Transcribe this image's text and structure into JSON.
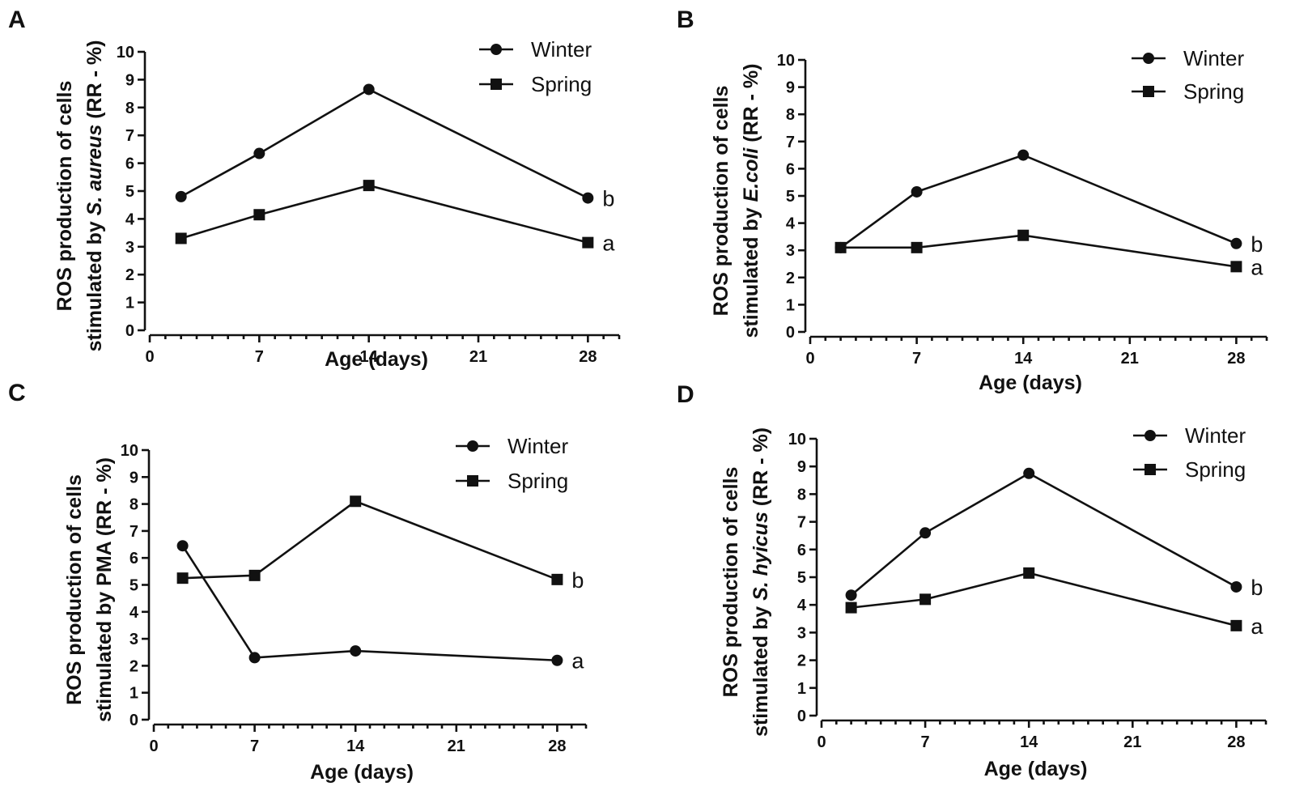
{
  "chart_data": [
    {
      "type": "line",
      "panel": "A",
      "title": "",
      "xlabel": "Age (days)",
      "ylabel_parts": [
        "ROS production of cells",
        "stimulated by ",
        "S. aureus",
        " (RR - %)"
      ],
      "xlim": [
        0,
        30
      ],
      "ylim": [
        0,
        10
      ],
      "xticks": [
        0,
        7,
        14,
        21,
        28
      ],
      "yticks": [
        0,
        1,
        2,
        3,
        4,
        5,
        6,
        7,
        8,
        9,
        10
      ],
      "x": [
        2,
        7,
        14,
        28
      ],
      "series": [
        {
          "name": "Winter",
          "marker": "circle",
          "values": [
            4.8,
            6.35,
            8.65,
            4.75
          ],
          "group_letter": "b"
        },
        {
          "name": "Spring",
          "marker": "square",
          "values": [
            3.3,
            4.15,
            5.2,
            3.15
          ],
          "group_letter": "a"
        }
      ],
      "legend": "top-right",
      "grid": false
    },
    {
      "type": "line",
      "panel": "B",
      "title": "",
      "xlabel": "Age (days)",
      "ylabel_parts": [
        "ROS production of cells",
        "stimulated by ",
        "E.coli",
        " (RR - %)"
      ],
      "xlim": [
        0,
        30
      ],
      "ylim": [
        0,
        10
      ],
      "xticks": [
        0,
        7,
        14,
        21,
        28
      ],
      "yticks": [
        0,
        1,
        2,
        3,
        4,
        5,
        6,
        7,
        8,
        9,
        10
      ],
      "x": [
        2,
        7,
        14,
        28
      ],
      "series": [
        {
          "name": "Winter",
          "marker": "circle",
          "values": [
            3.1,
            5.15,
            6.5,
            3.25
          ],
          "group_letter": "b"
        },
        {
          "name": "Spring",
          "marker": "square",
          "values": [
            3.1,
            3.1,
            3.55,
            2.4
          ],
          "group_letter": "a"
        }
      ],
      "legend": "top-right",
      "grid": false
    },
    {
      "type": "line",
      "panel": "C",
      "title": "",
      "xlabel": "Age (days)",
      "ylabel_parts": [
        "ROS production of cells",
        "stimulated by PMA (RR - %)",
        "",
        ""
      ],
      "xlim": [
        0,
        30
      ],
      "ylim": [
        0,
        10
      ],
      "xticks": [
        0,
        7,
        14,
        21,
        28
      ],
      "yticks": [
        0,
        1,
        2,
        3,
        4,
        5,
        6,
        7,
        8,
        9,
        10
      ],
      "x": [
        2,
        7,
        14,
        28
      ],
      "series": [
        {
          "name": "Winter",
          "marker": "circle",
          "values": [
            6.45,
            2.3,
            2.55,
            2.2
          ],
          "group_letter": "a"
        },
        {
          "name": "Spring",
          "marker": "square",
          "values": [
            5.25,
            5.35,
            8.1,
            5.2
          ],
          "group_letter": "b"
        }
      ],
      "legend": "top-right",
      "grid": false
    },
    {
      "type": "line",
      "panel": "D",
      "title": "",
      "xlabel": "Age (days)",
      "ylabel_parts": [
        "ROS production of cells",
        "stimulated by ",
        "S. hyicus",
        " (RR - %)"
      ],
      "xlim": [
        0,
        30
      ],
      "ylim": [
        0,
        10
      ],
      "xticks": [
        0,
        7,
        14,
        21,
        28
      ],
      "yticks": [
        0,
        1,
        2,
        3,
        4,
        5,
        6,
        7,
        8,
        9,
        10
      ],
      "x": [
        2,
        7,
        14,
        28
      ],
      "series": [
        {
          "name": "Winter",
          "marker": "circle",
          "values": [
            4.35,
            6.6,
            8.75,
            4.65
          ],
          "group_letter": "b"
        },
        {
          "name": "Spring",
          "marker": "square",
          "values": [
            3.9,
            4.2,
            5.15,
            3.25
          ],
          "group_letter": "a"
        }
      ],
      "legend": "top-right",
      "grid": false
    }
  ]
}
